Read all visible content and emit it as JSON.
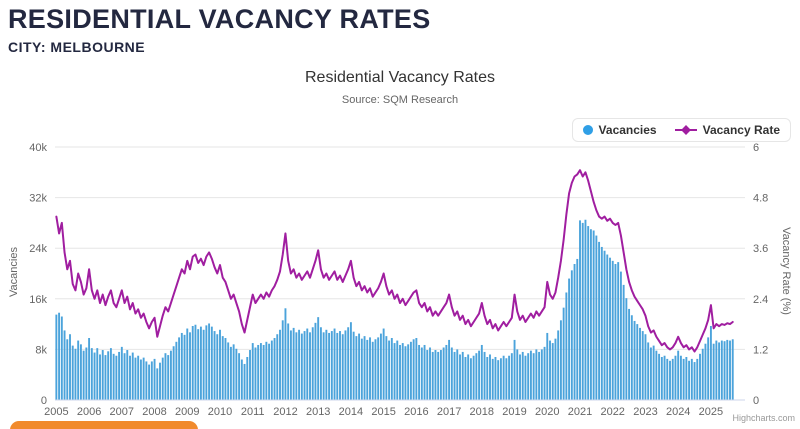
{
  "header": {
    "title": "RESIDENTIAL VACANCY RATES",
    "city_label": "CITY: MELBOURNE"
  },
  "chart": {
    "title": "Residential Vacancy Rates",
    "subtitle": "Source: SQM Research",
    "credit": "Highcharts.com",
    "legend": [
      {
        "label": "Vacancies",
        "marker": "circle-icon",
        "color": "#2f9fe6"
      },
      {
        "label": "Vacancy Rate",
        "marker": "line-diamond-icon",
        "color": "#a01ea0"
      }
    ]
  },
  "colors": {
    "bars": "#4ba3db",
    "line": "#a01ea0",
    "grid": "#e6e6e6",
    "axis_line": "#ccd6eb",
    "tick_text": "#666666",
    "cta_orange": "#f18a2c",
    "heading_navy": "#232840"
  },
  "chart_data": {
    "type": "bar",
    "combo": "monthly columns (Vacancies, left axis) + line (Vacancy Rate %, right axis)",
    "title": "Residential Vacancy Rates",
    "subtitle": "Source: SQM Research",
    "x_start": "2005-01",
    "x_end": "2025-09",
    "x_interval": "monthly",
    "x_tick_labels": [
      "2005",
      "2006",
      "2007",
      "2008",
      "2009",
      "2010",
      "2011",
      "2012",
      "2013",
      "2014",
      "2015",
      "2016",
      "2017",
      "2018",
      "2019",
      "2020",
      "2021",
      "2022",
      "2023",
      "2024",
      "2025"
    ],
    "y_left": {
      "title": "Vacancies",
      "min": 0,
      "max": 40000,
      "tick_values": [
        0,
        8000,
        16000,
        24000,
        32000,
        40000
      ],
      "tick_labels": [
        "0",
        "8k",
        "16k",
        "24k",
        "32k",
        "40k"
      ]
    },
    "y_right": {
      "title": "Vacancy Rate (%)",
      "min": 0,
      "max": 6,
      "tick_values": [
        0,
        1.2,
        2.4,
        3.6,
        4.8,
        6
      ],
      "tick_labels": [
        "0",
        "1.2",
        "2.4",
        "3.6",
        "4.8",
        "6"
      ]
    },
    "grid": "horizontal only",
    "legend_position": "top-right",
    "series": [
      {
        "name": "Vacancies",
        "type": "column",
        "axis": "left",
        "color": "#2f9fe6",
        "values": [
          13500,
          13800,
          13200,
          11000,
          9600,
          10400,
          8600,
          8100,
          9400,
          8800,
          7800,
          8300,
          9800,
          8200,
          7500,
          8200,
          7200,
          7900,
          7100,
          7700,
          8200,
          7300,
          7000,
          7600,
          8400,
          7400,
          7900,
          7000,
          7500,
          6700,
          7000,
          6400,
          6700,
          6100,
          5600,
          6100,
          6500,
          5000,
          5900,
          6700,
          7400,
          7100,
          7800,
          8500,
          9200,
          9900,
          10600,
          10300,
          11300,
          10700,
          11700,
          11900,
          11200,
          11600,
          11100,
          11800,
          12100,
          11600,
          10900,
          10400,
          11100,
          10100,
          9800,
          9100,
          8400,
          8800,
          8100,
          7400,
          6400,
          5700,
          6800,
          7900,
          9000,
          8300,
          8700,
          9000,
          8700,
          9200,
          8900,
          9400,
          9800,
          10400,
          11100,
          12600,
          14500,
          12100,
          11000,
          11400,
          10700,
          11100,
          10500,
          10900,
          11300,
          10700,
          11500,
          12200,
          13100,
          11500,
          10700,
          11100,
          10600,
          10900,
          11300,
          10600,
          10900,
          10400,
          11000,
          11500,
          12300,
          10800,
          10100,
          10500,
          9700,
          10100,
          9500,
          9900,
          9200,
          9600,
          9900,
          10500,
          11300,
          10100,
          9400,
          9800,
          9000,
          9400,
          8700,
          9000,
          8500,
          8800,
          9200,
          9600,
          9800,
          8700,
          8300,
          8700,
          7900,
          8300,
          7600,
          7900,
          7600,
          7900,
          8300,
          8700,
          9500,
          8300,
          7600,
          8000,
          7200,
          7600,
          6800,
          7200,
          6600,
          7000,
          7400,
          7800,
          8700,
          7600,
          6800,
          7200,
          6500,
          6800,
          6300,
          6600,
          7000,
          6600,
          7000,
          7400,
          9500,
          8000,
          7200,
          7600,
          7000,
          7400,
          7800,
          7400,
          8000,
          7600,
          8000,
          8400,
          10600,
          9400,
          9000,
          9700,
          11000,
          12600,
          14600,
          17000,
          19200,
          20500,
          21500,
          22300,
          28400,
          28000,
          28500,
          27500,
          27000,
          26800,
          26000,
          25000,
          24200,
          23600,
          23000,
          22500,
          22000,
          21500,
          21800,
          20300,
          18200,
          16100,
          14400,
          13400,
          12500,
          12000,
          11400,
          10900,
          10400,
          9100,
          8300,
          8600,
          7800,
          7300,
          6800,
          7000,
          6500,
          6200,
          6500,
          7000,
          7800,
          7000,
          6500,
          6800,
          6200,
          6500,
          6000,
          6500,
          7300,
          8100,
          8900,
          9900,
          11700,
          8900,
          9400,
          9100,
          9400,
          9300,
          9500,
          9400,
          9600
        ]
      },
      {
        "name": "Vacancy Rate",
        "type": "line",
        "axis": "right",
        "color": "#a01ea0",
        "values": [
          4.35,
          3.95,
          4.2,
          3.5,
          3.1,
          3.3,
          2.75,
          2.6,
          3.0,
          2.8,
          2.5,
          2.65,
          3.1,
          2.6,
          2.4,
          2.6,
          2.3,
          2.5,
          2.25,
          2.45,
          2.6,
          2.3,
          2.2,
          2.4,
          2.6,
          2.3,
          2.45,
          2.15,
          2.3,
          2.05,
          2.15,
          1.95,
          2.05,
          1.85,
          1.7,
          1.85,
          1.95,
          1.5,
          1.75,
          2.0,
          2.2,
          2.1,
          2.3,
          2.5,
          2.7,
          2.9,
          3.1,
          3.0,
          3.3,
          3.1,
          3.4,
          3.45,
          3.25,
          3.35,
          3.2,
          3.4,
          3.5,
          3.35,
          3.15,
          3.0,
          3.2,
          2.9,
          2.8,
          2.6,
          2.4,
          2.5,
          2.3,
          2.1,
          1.8,
          1.6,
          1.9,
          2.2,
          2.5,
          2.3,
          2.4,
          2.5,
          2.4,
          2.55,
          2.45,
          2.6,
          2.7,
          2.85,
          3.05,
          3.45,
          3.95,
          3.3,
          3.0,
          3.1,
          2.9,
          3.0,
          2.85,
          2.95,
          3.05,
          2.9,
          3.1,
          3.3,
          3.55,
          3.1,
          2.9,
          3.0,
          2.85,
          2.95,
          3.05,
          2.85,
          2.95,
          2.8,
          2.95,
          3.1,
          3.3,
          2.9,
          2.7,
          2.8,
          2.6,
          2.7,
          2.55,
          2.65,
          2.45,
          2.55,
          2.65,
          2.8,
          3.0,
          2.7,
          2.5,
          2.6,
          2.4,
          2.5,
          2.3,
          2.4,
          2.25,
          2.35,
          2.45,
          2.55,
          2.6,
          2.3,
          2.2,
          2.3,
          2.1,
          2.2,
          2.0,
          2.1,
          2.0,
          2.1,
          2.2,
          2.3,
          2.5,
          2.2,
          2.0,
          2.1,
          1.9,
          2.0,
          1.8,
          1.9,
          1.75,
          1.85,
          1.95,
          2.05,
          2.3,
          2.0,
          1.8,
          1.9,
          1.7,
          1.8,
          1.65,
          1.75,
          1.85,
          1.75,
          1.85,
          1.95,
          2.5,
          2.1,
          1.9,
          2.0,
          1.85,
          1.95,
          2.05,
          1.95,
          2.1,
          2.0,
          2.1,
          2.2,
          2.8,
          2.5,
          2.4,
          2.55,
          2.9,
          3.3,
          3.8,
          4.4,
          4.9,
          5.15,
          5.3,
          5.35,
          5.45,
          5.3,
          5.4,
          5.2,
          4.95,
          4.7,
          4.5,
          4.35,
          4.3,
          4.35,
          4.25,
          4.3,
          4.2,
          4.15,
          4.2,
          3.9,
          3.5,
          3.1,
          2.8,
          2.6,
          2.45,
          2.35,
          2.25,
          2.15,
          2.0,
          1.75,
          1.6,
          1.65,
          1.5,
          1.4,
          1.3,
          1.35,
          1.25,
          1.2,
          1.25,
          1.35,
          1.5,
          1.35,
          1.25,
          1.3,
          1.2,
          1.25,
          1.15,
          1.25,
          1.4,
          1.55,
          1.7,
          1.9,
          2.25,
          1.7,
          1.8,
          1.75,
          1.8,
          1.78,
          1.82,
          1.8,
          1.85
        ]
      }
    ]
  }
}
